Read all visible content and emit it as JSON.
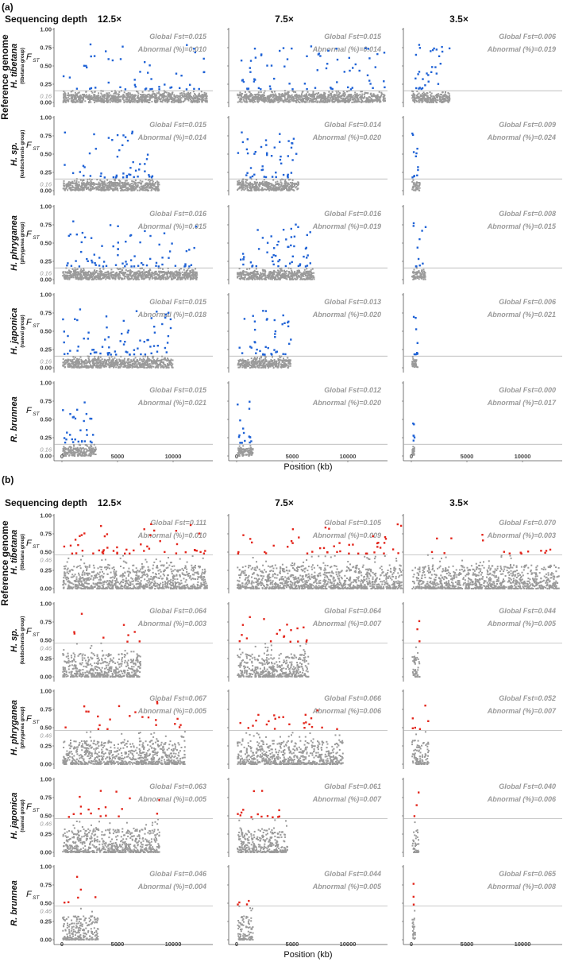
{
  "chart_data": {
    "type": "scatter",
    "xlabel": "Position (kb)",
    "ylabel": "F_ST",
    "ylabel_main": "F",
    "ylabel_sub": "ST",
    "row_axis_title": "Reference genome",
    "column_axis_title": "Sequencing depth",
    "columns": [
      "12.5×",
      "7.5×",
      "3.5×"
    ],
    "x_ticks": [
      "0",
      "5000",
      "10000"
    ],
    "x_tick_values": [
      0,
      5000,
      10000
    ],
    "y_ticks": [
      "0.00",
      "0.25",
      "0.50",
      "0.75",
      "1.00"
    ],
    "y_tick_values": [
      0,
      0.25,
      0.5,
      0.75,
      1.0
    ],
    "ylim": [
      0,
      1
    ],
    "stat_prefix_fst": "Global Fst=",
    "stat_prefix_abn": "Abnormal (%)=",
    "colors": {
      "background_points": "#9a9a9a",
      "panel_a_outliers": "#1f62d6",
      "panel_b_outliers": "#e3261c",
      "threshold_line": "#aaaaaa"
    },
    "panels": [
      {
        "label": "(a)",
        "threshold": 0.16,
        "threshold_label": "0.16",
        "rows": [
          {
            "species": "H. tibetana",
            "group": "(tibetana group)",
            "cells": [
              {
                "global_fst": "0.015",
                "abnormal": "0.010",
                "max_position_kb": 13000
              },
              {
                "global_fst": "0.015",
                "abnormal": "0.014",
                "max_position_kb": 13300
              },
              {
                "global_fst": "0.006",
                "abnormal": "0.019",
                "max_position_kb": 3400
              }
            ]
          },
          {
            "species": "H. sp.",
            "group": "(kuldschensis group)",
            "cells": [
              {
                "global_fst": "0.015",
                "abnormal": "0.014",
                "max_position_kb": 8700
              },
              {
                "global_fst": "0.014",
                "abnormal": "0.020",
                "max_position_kb": 5500
              },
              {
                "global_fst": "0.009",
                "abnormal": "0.024",
                "max_position_kb": 700
              }
            ]
          },
          {
            "species": "H. phryganea",
            "group": "(phryganea group)",
            "cells": [
              {
                "global_fst": "0.016",
                "abnormal": "0.015",
                "max_position_kb": 12100
              },
              {
                "global_fst": "0.016",
                "abnormal": "0.019",
                "max_position_kb": 6900
              },
              {
                "global_fst": "0.008",
                "abnormal": "0.015",
                "max_position_kb": 1200
              }
            ]
          },
          {
            "species": "H. japonica",
            "group": "(naevai group)",
            "cells": [
              {
                "global_fst": "0.015",
                "abnormal": "0.018",
                "max_position_kb": 9900
              },
              {
                "global_fst": "0.013",
                "abnormal": "0.020",
                "max_position_kb": 4800
              },
              {
                "global_fst": "0.006",
                "abnormal": "0.021",
                "max_position_kb": 500
              }
            ]
          },
          {
            "species": "R. brunnea",
            "group": "",
            "cells": [
              {
                "global_fst": "0.015",
                "abnormal": "0.021",
                "max_position_kb": 3000
              },
              {
                "global_fst": "0.012",
                "abnormal": "0.020",
                "max_position_kb": 1400
              },
              {
                "global_fst": "0.000",
                "abnormal": "0.017",
                "max_position_kb": 200
              }
            ]
          }
        ]
      },
      {
        "label": "(b)",
        "threshold": 0.46,
        "threshold_label": "0.46",
        "rows": [
          {
            "species": "H. tibetana",
            "group": "(tibetana group)",
            "cells": [
              {
                "global_fst": "0.111",
                "abnormal": "0.010",
                "max_position_kb": 13000
              },
              {
                "global_fst": "0.105",
                "abnormal": "0.009",
                "max_position_kb": 14800
              },
              {
                "global_fst": "0.070",
                "abnormal": "0.003",
                "max_position_kb": 13200
              }
            ]
          },
          {
            "species": "H. sp.",
            "group": "(kuldschensis group)",
            "cells": [
              {
                "global_fst": "0.064",
                "abnormal": "0.003",
                "max_position_kb": 7000
              },
              {
                "global_fst": "0.064",
                "abnormal": "0.007",
                "max_position_kb": 6400
              },
              {
                "global_fst": "0.044",
                "abnormal": "0.005",
                "max_position_kb": 700
              }
            ]
          },
          {
            "species": "H. phryganea",
            "group": "(phryganea group)",
            "cells": [
              {
                "global_fst": "0.067",
                "abnormal": "0.005",
                "max_position_kb": 11000
              },
              {
                "global_fst": "0.066",
                "abnormal": "0.006",
                "max_position_kb": 9500
              },
              {
                "global_fst": "0.052",
                "abnormal": "0.007",
                "max_position_kb": 1500
              }
            ]
          },
          {
            "species": "H. japonica",
            "group": "(naevai group)",
            "cells": [
              {
                "global_fst": "0.063",
                "abnormal": "0.005",
                "max_position_kb": 8700
              },
              {
                "global_fst": "0.061",
                "abnormal": "0.007",
                "max_position_kb": 4500
              },
              {
                "global_fst": "0.040",
                "abnormal": "0.006",
                "max_position_kb": 600
              }
            ]
          },
          {
            "species": "R. brunnea",
            "group": "",
            "cells": [
              {
                "global_fst": "0.046",
                "abnormal": "0.004",
                "max_position_kb": 3200
              },
              {
                "global_fst": "0.044",
                "abnormal": "0.005",
                "max_position_kb": 1400
              },
              {
                "global_fst": "0.065",
                "abnormal": "0.008",
                "max_position_kb": 300
              }
            ]
          }
        ]
      }
    ]
  }
}
